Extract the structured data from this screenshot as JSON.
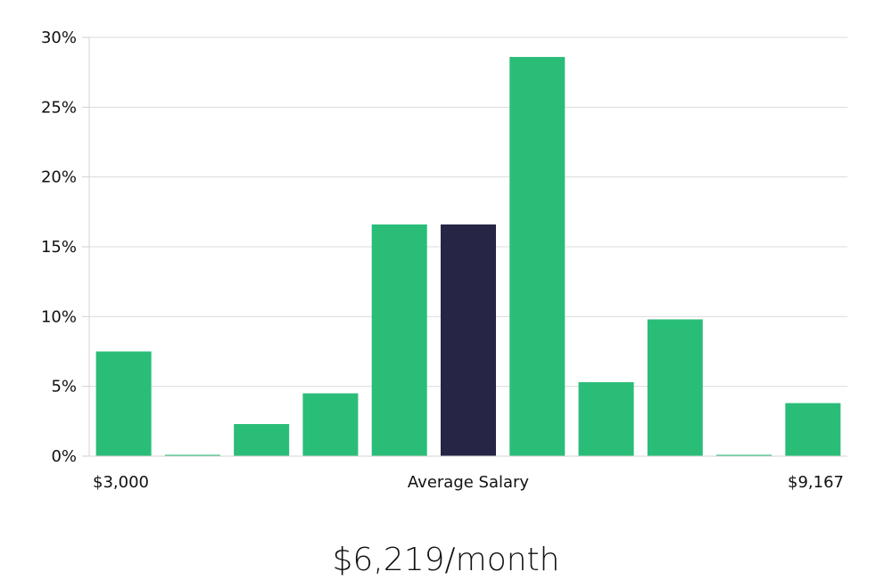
{
  "chart_data": {
    "type": "bar",
    "xlabel": "Average Salary",
    "x_min_label": "$3,000",
    "x_max_label": "$9,167",
    "y_ticks": [
      "0%",
      "5%",
      "10%",
      "15%",
      "20%",
      "25%",
      "30%"
    ],
    "ylim": [
      0,
      30
    ],
    "grid": true,
    "values": [
      7.5,
      0,
      2.3,
      4.5,
      16.6,
      16.6,
      28.6,
      5.3,
      9.8,
      0,
      3.8
    ],
    "highlight_index": 5,
    "bar_color": "#2abd78",
    "highlight_color": "#272546"
  },
  "summary": "$6,219/month"
}
